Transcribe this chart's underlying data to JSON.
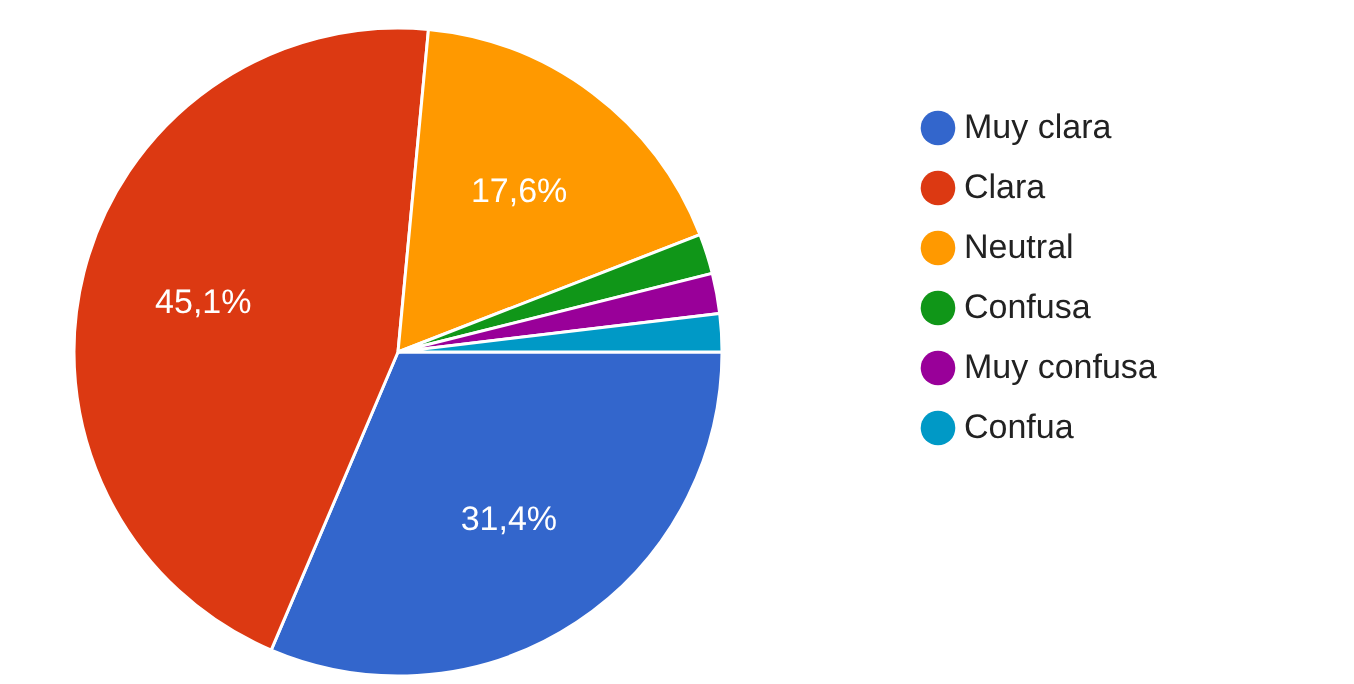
{
  "chart_data": {
    "type": "pie",
    "categories": [
      "Muy clara",
      "Clara",
      "Neutral",
      "Confusa",
      "Muy confusa",
      "Confua"
    ],
    "values": [
      31.4,
      45.1,
      17.6,
      2.0,
      2.0,
      1.9
    ],
    "colors": [
      "#3366cc",
      "#dc3912",
      "#ff9900",
      "#109618",
      "#990099",
      "#0099c6"
    ],
    "value_labels": [
      "31,4%",
      "45,1%",
      "17,6%",
      null,
      null,
      null
    ],
    "legend": "right"
  }
}
